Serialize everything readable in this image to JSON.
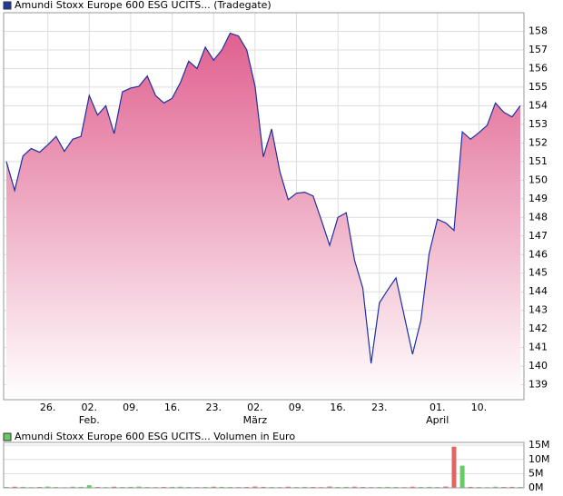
{
  "chart_data": [
    {
      "type": "area",
      "title": "Amundi Stoxx Europe 600 ESG UCITS... (Tradegate)",
      "legend_color": "#1f3a9f",
      "categories": [
        null,
        null,
        null,
        null,
        null,
        "26.",
        null,
        null,
        null,
        null,
        "02.",
        null,
        null,
        null,
        null,
        "09.",
        null,
        null,
        null,
        null,
        "16.",
        null,
        null,
        null,
        null,
        "23.",
        null,
        null,
        null,
        null,
        "02.",
        null,
        null,
        null,
        null,
        "09.",
        null,
        null,
        null,
        null,
        "16.",
        null,
        null,
        null,
        null,
        "23.",
        null,
        null,
        null,
        null,
        null,
        null,
        "01.",
        null,
        null,
        null,
        null,
        "10.",
        null,
        null,
        null,
        null,
        null
      ],
      "month_labels": [
        null,
        null,
        null,
        null,
        null,
        null,
        null,
        null,
        null,
        null,
        "Feb.",
        null,
        null,
        null,
        null,
        null,
        null,
        null,
        null,
        null,
        null,
        null,
        null,
        null,
        null,
        null,
        null,
        null,
        null,
        null,
        "März",
        null,
        null,
        null,
        null,
        null,
        null,
        null,
        null,
        null,
        null,
        null,
        null,
        null,
        null,
        null,
        null,
        null,
        null,
        null,
        null,
        null,
        "April",
        null,
        null,
        null,
        null,
        null,
        null,
        null,
        null,
        null,
        null
      ],
      "series": [
        {
          "color": "#1f2f9f",
          "fill_color": "#e0608f",
          "values": [
            151.0,
            149.45,
            151.3,
            151.7,
            151.5,
            151.9,
            152.35,
            151.55,
            152.2,
            152.35,
            154.55,
            153.5,
            154.0,
            152.5,
            154.75,
            154.95,
            155.05,
            155.6,
            154.55,
            154.15,
            154.4,
            155.25,
            156.4,
            156.0,
            157.15,
            156.45,
            157.0,
            157.9,
            157.75,
            157.0,
            155.05,
            151.25,
            152.75,
            150.45,
            148.95,
            149.3,
            149.35,
            149.15,
            147.85,
            146.5,
            148.0,
            148.25,
            145.7,
            144.2,
            140.15,
            143.4,
            144.1,
            144.75,
            142.7,
            140.65,
            142.45,
            146.05,
            147.9,
            147.7,
            147.3,
            152.6,
            152.2,
            152.55,
            152.95,
            154.15,
            153.65,
            153.4,
            154.0
          ]
        }
      ],
      "ylim": [
        138.2,
        159.0
      ],
      "yticks": [
        139,
        140,
        141,
        142,
        143,
        144,
        145,
        146,
        147,
        148,
        149,
        150,
        151,
        152,
        153,
        154,
        155,
        156,
        157,
        158
      ],
      "grid": true
    },
    {
      "type": "bar",
      "title": "Amundi Stoxx Europe 600 ESG UCITS... Volumen in Euro",
      "legend_color": "#66cc66",
      "values": [
        300000,
        400000,
        350000,
        250000,
        300000,
        450000,
        300000,
        200000,
        400000,
        350000,
        900000,
        300000,
        250000,
        400000,
        300000,
        350000,
        450000,
        300000,
        250000,
        300000,
        350000,
        400000,
        300000,
        250000,
        300000,
        400000,
        350000,
        300000,
        250000,
        300000,
        450000,
        350000,
        300000,
        250000,
        400000,
        300000,
        350000,
        300000,
        250000,
        450000,
        300000,
        350000,
        400000,
        300000,
        250000,
        300000,
        350000,
        300000,
        250000,
        400000,
        300000,
        350000,
        300000,
        450000,
        14500000,
        7800000,
        350000,
        300000,
        250000,
        400000,
        300000,
        350000,
        300000
      ],
      "colors": [
        "#66cc66",
        "#e06666",
        "#66cc66",
        "#66cc66",
        "#e06666",
        "#66cc66",
        "#66cc66",
        "#e06666",
        "#66cc66",
        "#66cc66",
        "#66cc66",
        "#e06666",
        "#66cc66",
        "#e06666",
        "#66cc66",
        "#66cc66",
        "#66cc66",
        "#66cc66",
        "#e06666",
        "#e06666",
        "#66cc66",
        "#66cc66",
        "#66cc66",
        "#e06666",
        "#66cc66",
        "#e06666",
        "#66cc66",
        "#66cc66",
        "#e06666",
        "#e06666",
        "#e06666",
        "#e06666",
        "#66cc66",
        "#e06666",
        "#e06666",
        "#66cc66",
        "#66cc66",
        "#e06666",
        "#e06666",
        "#e06666",
        "#66cc66",
        "#66cc66",
        "#e06666",
        "#e06666",
        "#e06666",
        "#66cc66",
        "#66cc66",
        "#66cc66",
        "#e06666",
        "#e06666",
        "#66cc66",
        "#66cc66",
        "#66cc66",
        "#e06666",
        "#e06666",
        "#66cc66",
        "#e06666",
        "#66cc66",
        "#66cc66",
        "#66cc66",
        "#e06666",
        "#e06666",
        "#66cc66"
      ],
      "ylim": [
        0,
        16000000
      ],
      "yticks": [
        {
          "value": 0,
          "label": "0M"
        },
        {
          "value": 5000000,
          "label": "5M"
        },
        {
          "value": 10000000,
          "label": "10M"
        },
        {
          "value": 15000000,
          "label": "15M"
        }
      ],
      "grid": true
    }
  ]
}
